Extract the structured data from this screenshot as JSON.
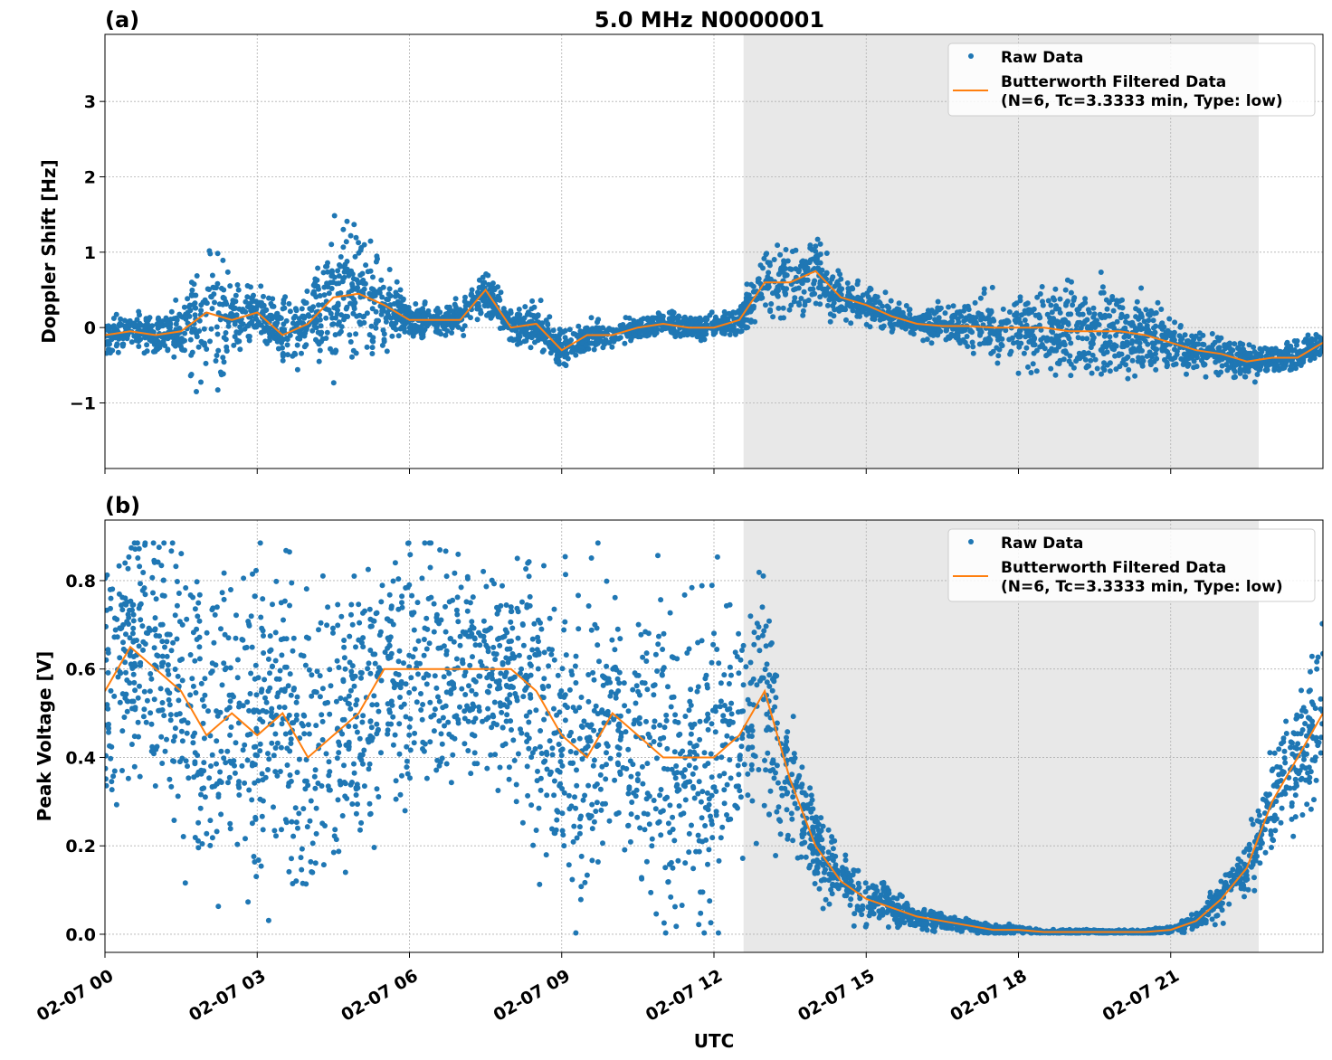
{
  "title": "5.0 MHz N0000001",
  "colors": {
    "raw": "#1f77b4",
    "filtered": "#ff7f0e",
    "shade": "#e8e8e8",
    "grid": "#b0b0b0"
  },
  "chart_data": [
    {
      "panel_label": "(a)",
      "type": "scatter+line",
      "ylabel": "Doppler Shift [Hz]",
      "xlabel": "",
      "ylim": [
        -1.87,
        3.89
      ],
      "xlim": [
        "02-07 00:00",
        "02-08 00:00"
      ],
      "yticks": [
        -1,
        0,
        1,
        2,
        3
      ],
      "ytick_labels": [
        "−1",
        "0",
        "1",
        "2",
        "3"
      ],
      "grid": true,
      "legend_placement": "top-right",
      "legend": [
        "Raw Data",
        "Butterworth Filtered Data",
        "(N=6, Tc=3.3333 min, Type: low)"
      ],
      "shaded_interval": [
        "02-07 12:35",
        "02-07 22:44"
      ],
      "times": [
        "00:00",
        "00:30",
        "01:00",
        "01:30",
        "02:00",
        "02:30",
        "03:00",
        "03:30",
        "04:00",
        "04:30",
        "05:00",
        "05:30",
        "06:00",
        "06:30",
        "07:00",
        "07:30",
        "08:00",
        "08:30",
        "09:00",
        "09:30",
        "10:00",
        "10:30",
        "11:00",
        "11:30",
        "12:00",
        "12:30",
        "13:00",
        "13:30",
        "14:00",
        "14:30",
        "15:00",
        "15:30",
        "16:00",
        "16:30",
        "17:00",
        "17:30",
        "18:00",
        "18:30",
        "19:00",
        "19:30",
        "20:00",
        "20:30",
        "21:00",
        "21:30",
        "22:00",
        "22:30",
        "23:00",
        "23:30",
        "24:00"
      ],
      "filtered": [
        -0.1,
        -0.05,
        -0.1,
        -0.05,
        0.2,
        0.1,
        0.2,
        -0.1,
        0.05,
        0.4,
        0.45,
        0.3,
        0.1,
        0.1,
        0.1,
        0.5,
        0.0,
        0.05,
        -0.3,
        -0.1,
        -0.1,
        0.0,
        0.05,
        0.0,
        0.0,
        0.1,
        0.6,
        0.6,
        0.75,
        0.4,
        0.3,
        0.15,
        0.05,
        0.02,
        0.02,
        0.0,
        0.0,
        0.0,
        -0.05,
        -0.05,
        -0.05,
        -0.1,
        -0.2,
        -0.3,
        -0.35,
        -0.45,
        -0.4,
        -0.4,
        -0.2
      ],
      "raw_spread": [
        0.25,
        0.2,
        0.3,
        0.3,
        1.2,
        0.5,
        0.35,
        0.5,
        0.35,
        0.9,
        1.0,
        0.5,
        0.2,
        0.2,
        0.2,
        0.3,
        0.2,
        0.25,
        0.3,
        0.2,
        0.15,
        0.15,
        0.15,
        0.15,
        0.15,
        0.2,
        0.45,
        0.5,
        0.45,
        0.3,
        0.25,
        0.2,
        0.15,
        0.25,
        0.3,
        0.4,
        0.5,
        0.55,
        0.6,
        0.6,
        0.6,
        0.5,
        0.35,
        0.3,
        0.25,
        0.25,
        0.2,
        0.2,
        0.2
      ]
    },
    {
      "panel_label": "(b)",
      "type": "scatter+line",
      "ylabel": "Peak Voltage [V]",
      "xlabel": "UTC",
      "ylim": [
        -0.041,
        0.937
      ],
      "xlim": [
        "02-07 00:00",
        "02-08 00:00"
      ],
      "yticks": [
        0.0,
        0.2,
        0.4,
        0.6,
        0.8
      ],
      "ytick_labels": [
        "0.0",
        "0.2",
        "0.4",
        "0.6",
        "0.8"
      ],
      "xticks": [
        "02-07 00:00",
        "02-07 03:00",
        "02-07 06:00",
        "02-07 09:00",
        "02-07 12:00",
        "02-07 15:00",
        "02-07 18:00",
        "02-07 21:00"
      ],
      "xtick_labels": [
        "02-07 00",
        "02-07 03",
        "02-07 06",
        "02-07 09",
        "02-07 12",
        "02-07 15",
        "02-07 18",
        "02-07 21"
      ],
      "grid": true,
      "legend_placement": "top-right",
      "legend": [
        "Raw Data",
        "Butterworth Filtered Data",
        "(N=6, Tc=3.3333 min, Type: low)"
      ],
      "shaded_interval": [
        "02-07 12:35",
        "02-07 22:44"
      ],
      "times": [
        "00:00",
        "00:30",
        "01:00",
        "01:30",
        "02:00",
        "02:30",
        "03:00",
        "03:30",
        "04:00",
        "04:30",
        "05:00",
        "05:30",
        "06:00",
        "06:30",
        "07:00",
        "07:30",
        "08:00",
        "08:30",
        "09:00",
        "09:30",
        "10:00",
        "10:30",
        "11:00",
        "11:30",
        "12:00",
        "12:30",
        "13:00",
        "13:30",
        "14:00",
        "14:30",
        "15:00",
        "15:30",
        "16:00",
        "16:30",
        "17:00",
        "17:30",
        "18:00",
        "18:30",
        "19:00",
        "19:30",
        "20:00",
        "20:30",
        "21:00",
        "21:30",
        "22:00",
        "22:30",
        "23:00",
        "23:30",
        "24:00"
      ],
      "filtered": [
        0.55,
        0.65,
        0.6,
        0.55,
        0.45,
        0.5,
        0.45,
        0.5,
        0.4,
        0.45,
        0.5,
        0.6,
        0.6,
        0.6,
        0.6,
        0.6,
        0.6,
        0.55,
        0.45,
        0.4,
        0.5,
        0.45,
        0.4,
        0.4,
        0.4,
        0.45,
        0.55,
        0.35,
        0.2,
        0.12,
        0.08,
        0.06,
        0.04,
        0.03,
        0.02,
        0.01,
        0.01,
        0.005,
        0.005,
        0.005,
        0.005,
        0.005,
        0.01,
        0.03,
        0.08,
        0.15,
        0.3,
        0.4,
        0.5
      ],
      "raw_spread": [
        0.3,
        0.25,
        0.3,
        0.35,
        0.35,
        0.35,
        0.35,
        0.35,
        0.35,
        0.35,
        0.3,
        0.3,
        0.3,
        0.3,
        0.25,
        0.25,
        0.25,
        0.3,
        0.35,
        0.35,
        0.3,
        0.3,
        0.35,
        0.35,
        0.35,
        0.3,
        0.3,
        0.15,
        0.1,
        0.08,
        0.06,
        0.04,
        0.03,
        0.02,
        0.015,
        0.01,
        0.008,
        0.005,
        0.005,
        0.005,
        0.005,
        0.005,
        0.008,
        0.02,
        0.05,
        0.08,
        0.12,
        0.15,
        0.2
      ]
    }
  ]
}
